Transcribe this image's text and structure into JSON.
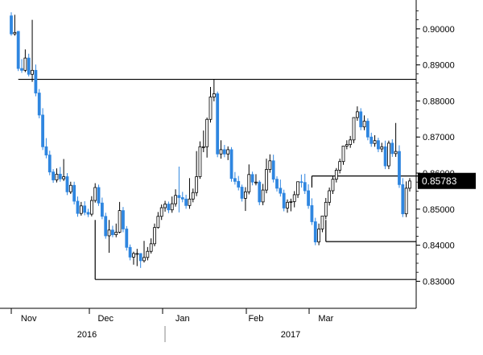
{
  "chart_data": {
    "type": "candlestick",
    "title": "",
    "xlabel": "",
    "ylabel": "",
    "ylim": [
      0.8225,
      0.908
    ],
    "y_ticks": [
      0.9,
      0.89,
      0.88,
      0.87,
      0.86,
      0.85,
      0.84,
      0.83
    ],
    "y_tick_labels": [
      "0.90000",
      "0.89000",
      "0.88000",
      "0.87000",
      "0.86000",
      "0.85000",
      "0.84000",
      "0.83000"
    ],
    "x_month_labels": [
      "Nov",
      "Dec",
      "Jan",
      "Feb",
      "Mar"
    ],
    "x_year_labels": [
      "2016",
      "2017"
    ],
    "last_price": 0.85783,
    "last_price_label": "0.85783",
    "up_color": "#000000",
    "down_color": "#2f86e0",
    "grid": false,
    "levels": [
      0.886,
      0.8592,
      0.841,
      0.8305
    ],
    "candles": [
      [
        0.9036,
        0.9046,
        0.8986,
        0.8981
      ],
      [
        0.8986,
        0.9039,
        0.899,
        0.8981
      ],
      [
        0.8993,
        0.8994,
        0.889,
        0.8883
      ],
      [
        0.889,
        0.8916,
        0.8885,
        0.8878
      ],
      [
        0.8885,
        0.8943,
        0.8919,
        0.888
      ],
      [
        0.8919,
        0.8931,
        0.8874,
        0.8868
      ],
      [
        0.8874,
        0.9025,
        0.8885,
        0.8853
      ],
      [
        0.8885,
        0.8901,
        0.8822,
        0.8813
      ],
      [
        0.8822,
        0.8833,
        0.8761,
        0.8752
      ],
      [
        0.8761,
        0.878,
        0.8673,
        0.8664
      ],
      [
        0.8673,
        0.8697,
        0.865,
        0.8641
      ],
      [
        0.865,
        0.8662,
        0.8603,
        0.8594
      ],
      [
        0.8603,
        0.8611,
        0.8581,
        0.8573
      ],
      [
        0.8581,
        0.8613,
        0.8597,
        0.8574
      ],
      [
        0.8597,
        0.8617,
        0.8584,
        0.8576
      ],
      [
        0.8584,
        0.8639,
        0.859,
        0.8578
      ],
      [
        0.859,
        0.86,
        0.8548,
        0.8539
      ],
      [
        0.8548,
        0.8576,
        0.8566,
        0.8542
      ],
      [
        0.8566,
        0.8576,
        0.8522,
        0.8513
      ],
      [
        0.8522,
        0.8535,
        0.8488,
        0.8479
      ],
      [
        0.8488,
        0.852,
        0.8509,
        0.8482
      ],
      [
        0.8509,
        0.8522,
        0.8491,
        0.8483
      ],
      [
        0.8491,
        0.8501,
        0.8486,
        0.8478
      ],
      [
        0.8486,
        0.8536,
        0.8524,
        0.848
      ],
      [
        0.8524,
        0.8572,
        0.856,
        0.8518
      ],
      [
        0.856,
        0.8568,
        0.8517,
        0.8509
      ],
      [
        0.8517,
        0.8532,
        0.848,
        0.8472
      ],
      [
        0.848,
        0.849,
        0.8426,
        0.8418
      ],
      [
        0.8426,
        0.847,
        0.8442,
        0.8379
      ],
      [
        0.8442,
        0.8454,
        0.8429,
        0.8422
      ],
      [
        0.8429,
        0.846,
        0.8436,
        0.8422
      ],
      [
        0.8436,
        0.852,
        0.8496,
        0.8433
      ],
      [
        0.8496,
        0.8506,
        0.8445,
        0.8436
      ],
      [
        0.8445,
        0.8453,
        0.8394,
        0.8385
      ],
      [
        0.8394,
        0.8402,
        0.8367,
        0.8358
      ],
      [
        0.8367,
        0.8382,
        0.8377,
        0.8346
      ],
      [
        0.8377,
        0.839,
        0.8377,
        0.8342
      ],
      [
        0.8377,
        0.8378,
        0.8357,
        0.8337
      ],
      [
        0.8357,
        0.8412,
        0.8366,
        0.8352
      ],
      [
        0.8366,
        0.8395,
        0.8383,
        0.8358
      ],
      [
        0.8383,
        0.8419,
        0.8404,
        0.8377
      ],
      [
        0.8404,
        0.846,
        0.8449,
        0.8397
      ],
      [
        0.8449,
        0.8492,
        0.848,
        0.8446
      ],
      [
        0.848,
        0.8513,
        0.8504,
        0.847
      ],
      [
        0.8504,
        0.8523,
        0.8514,
        0.8493
      ],
      [
        0.8514,
        0.8521,
        0.8498,
        0.8489
      ],
      [
        0.8498,
        0.8535,
        0.8515,
        0.849
      ],
      [
        0.8515,
        0.8555,
        0.8538,
        0.8507
      ],
      [
        0.8538,
        0.8618,
        0.8532,
        0.8491
      ],
      [
        0.8532,
        0.8548,
        0.8528,
        0.8519
      ],
      [
        0.8528,
        0.854,
        0.851,
        0.8501
      ],
      [
        0.851,
        0.8586,
        0.8528,
        0.8501
      ],
      [
        0.8528,
        0.8557,
        0.8546,
        0.8519
      ],
      [
        0.8546,
        0.8661,
        0.859,
        0.8536
      ],
      [
        0.859,
        0.8688,
        0.8673,
        0.8584
      ],
      [
        0.8673,
        0.8718,
        0.8673,
        0.8658
      ],
      [
        0.8673,
        0.8754,
        0.8749,
        0.8643
      ],
      [
        0.8749,
        0.8839,
        0.8811,
        0.874
      ],
      [
        0.8811,
        0.886,
        0.882,
        0.8799
      ],
      [
        0.882,
        0.8826,
        0.8653,
        0.8644
      ],
      [
        0.8653,
        0.8691,
        0.8665,
        0.864
      ],
      [
        0.8665,
        0.8678,
        0.8653,
        0.8644
      ],
      [
        0.8653,
        0.8674,
        0.8665,
        0.8636
      ],
      [
        0.8665,
        0.8672,
        0.8585,
        0.8576
      ],
      [
        0.8585,
        0.8603,
        0.8577,
        0.8568
      ],
      [
        0.8577,
        0.8592,
        0.8561,
        0.8552
      ],
      [
        0.8561,
        0.8568,
        0.853,
        0.8521
      ],
      [
        0.853,
        0.8561,
        0.8548,
        0.8495
      ],
      [
        0.8548,
        0.8624,
        0.8596,
        0.8541
      ],
      [
        0.8596,
        0.8604,
        0.8575,
        0.8566
      ],
      [
        0.8575,
        0.8597,
        0.8575,
        0.8566
      ],
      [
        0.8575,
        0.858,
        0.852,
        0.8511
      ],
      [
        0.852,
        0.857,
        0.8553,
        0.8511
      ],
      [
        0.8553,
        0.864,
        0.861,
        0.8544
      ],
      [
        0.861,
        0.8652,
        0.8634,
        0.8601
      ],
      [
        0.8634,
        0.8651,
        0.8583,
        0.8574
      ],
      [
        0.8583,
        0.8591,
        0.8558,
        0.8549
      ],
      [
        0.8558,
        0.8582,
        0.8544,
        0.8535
      ],
      [
        0.8544,
        0.8554,
        0.8503,
        0.8494
      ],
      [
        0.8503,
        0.8527,
        0.8519,
        0.849
      ],
      [
        0.8519,
        0.8529,
        0.8521,
        0.8494
      ],
      [
        0.8521,
        0.855,
        0.854,
        0.8505
      ],
      [
        0.854,
        0.8571,
        0.8576,
        0.8531
      ],
      [
        0.8576,
        0.8596,
        0.8574,
        0.856
      ],
      [
        0.8574,
        0.8598,
        0.8551,
        0.8542
      ],
      [
        0.8551,
        0.8569,
        0.851,
        0.8501
      ],
      [
        0.851,
        0.853,
        0.8465,
        0.8456
      ],
      [
        0.8465,
        0.8476,
        0.8409,
        0.84
      ],
      [
        0.8409,
        0.846,
        0.8445,
        0.84
      ],
      [
        0.8445,
        0.8476,
        0.8481,
        0.8436
      ],
      [
        0.8481,
        0.8531,
        0.8519,
        0.8472
      ],
      [
        0.8519,
        0.856,
        0.8551,
        0.851
      ],
      [
        0.8551,
        0.8593,
        0.8583,
        0.8542
      ],
      [
        0.8583,
        0.8614,
        0.8608,
        0.8574
      ],
      [
        0.8608,
        0.864,
        0.8632,
        0.8599
      ],
      [
        0.8632,
        0.866,
        0.8675,
        0.8623
      ],
      [
        0.8675,
        0.8691,
        0.8679,
        0.8666
      ],
      [
        0.8679,
        0.8703,
        0.8692,
        0.867
      ],
      [
        0.8692,
        0.8745,
        0.8754,
        0.8683
      ],
      [
        0.8754,
        0.8785,
        0.877,
        0.8745
      ],
      [
        0.877,
        0.878,
        0.8728,
        0.8719
      ],
      [
        0.8728,
        0.876,
        0.8744,
        0.8719
      ],
      [
        0.8744,
        0.8752,
        0.87,
        0.8691
      ],
      [
        0.87,
        0.8712,
        0.8682,
        0.8673
      ],
      [
        0.8682,
        0.8705,
        0.869,
        0.8673
      ],
      [
        0.869,
        0.8698,
        0.8667,
        0.8658
      ],
      [
        0.8667,
        0.8684,
        0.8673,
        0.8658
      ],
      [
        0.8673,
        0.869,
        0.862,
        0.8611
      ],
      [
        0.862,
        0.869,
        0.8683,
        0.8611
      ],
      [
        0.8683,
        0.8694,
        0.8654,
        0.8645
      ],
      [
        0.8654,
        0.8739,
        0.866,
        0.8645
      ],
      [
        0.866,
        0.8677,
        0.8568,
        0.8559
      ],
      [
        0.8568,
        0.8586,
        0.8487,
        0.8478
      ],
      [
        0.8487,
        0.8577,
        0.8558,
        0.8478
      ],
      [
        0.8558,
        0.8586,
        0.8578,
        0.8549
      ]
    ]
  }
}
